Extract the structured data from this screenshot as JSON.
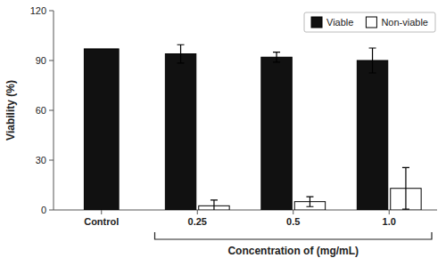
{
  "chart_data": {
    "type": "bar",
    "categories": [
      "Control",
      "0.25",
      "0.5",
      "1.0"
    ],
    "series": [
      {
        "name": "Viable",
        "color": "#111111",
        "values": [
          97.0,
          94.0,
          92.0,
          90.0
        ],
        "errors": [
          null,
          5.5,
          3.0,
          7.5
        ]
      },
      {
        "name": "Non-viable",
        "color": "#ffffff",
        "values": [
          null,
          2.5,
          5.0,
          13.0
        ],
        "errors": [
          null,
          3.5,
          3.0,
          12.5
        ]
      }
    ],
    "ylabel": "Viability (%)",
    "xlabel": "Concentration of (mg/mL)",
    "ylim": [
      0,
      120
    ],
    "yticks": [
      0,
      30,
      60,
      90,
      120
    ],
    "grid": false,
    "legend": "upper right"
  }
}
